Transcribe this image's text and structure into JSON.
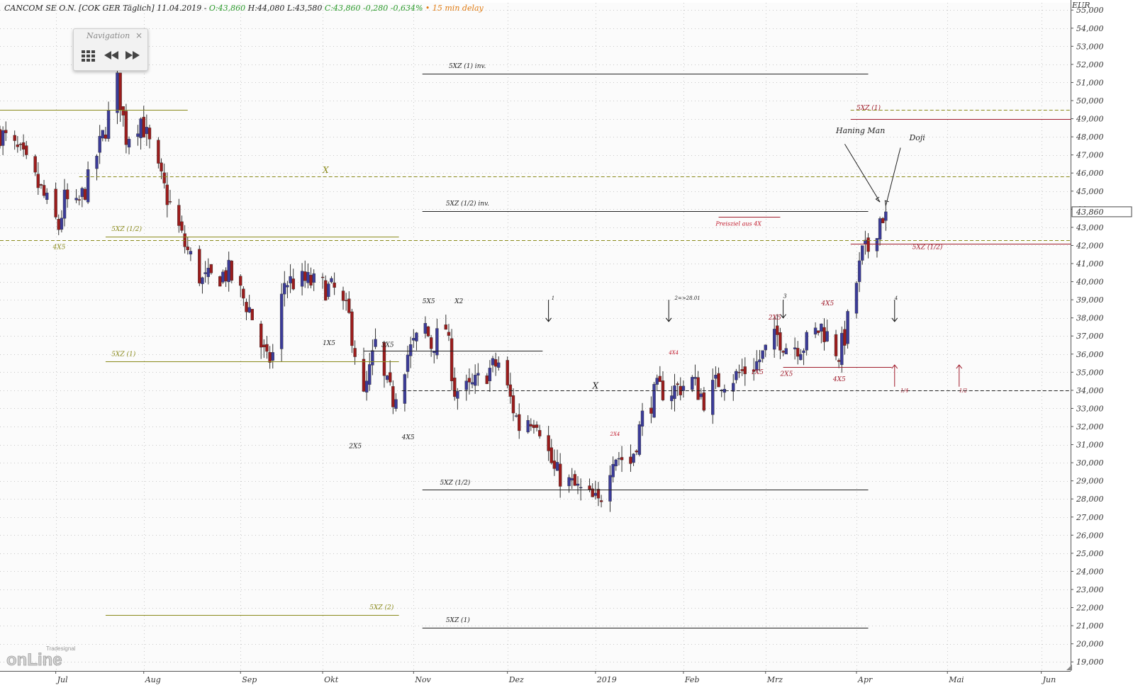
{
  "header": {
    "symbol": "CANCOM SE O.N. [COK GER Täglich] 11.04.2019 -",
    "open": "O:43,860",
    "high": "H:44,080",
    "low": "L:43,580",
    "close": "C:43,860 -0,280 -0,634%",
    "delay": "• 15 min delay"
  },
  "navigation": {
    "title": "Navigation",
    "close": "×"
  },
  "logo": {
    "brand": "Tradesignal",
    "text": "onLine"
  },
  "colors": {
    "up": "#3b3b98",
    "down": "#9b1c1c",
    "olive": "#8a8a1a",
    "crimson": "#a01b2b",
    "text": "#333333",
    "price_box": "#444444"
  },
  "chart_data": {
    "type": "candlestick",
    "currency": "EUR",
    "ylim": [
      18.5,
      55.4
    ],
    "y_ticks": [
      "19,000",
      "20,000",
      "21,000",
      "22,000",
      "23,000",
      "24,000",
      "25,000",
      "26,000",
      "27,000",
      "28,000",
      "29,000",
      "30,000",
      "31,000",
      "32,000",
      "33,000",
      "34,000",
      "35,000",
      "36,000",
      "37,000",
      "38,000",
      "39,000",
      "40,000",
      "41,000",
      "42,000",
      "43,000",
      "44,000",
      "45,000",
      "46,000",
      "47,000",
      "48,000",
      "49,000",
      "50,000",
      "51,000",
      "52,000",
      "53,000",
      "54,000",
      "55,000"
    ],
    "x_labels": [
      {
        "label": "Jul",
        "date": "2018-07-02"
      },
      {
        "label": "Aug",
        "date": "2018-08-01"
      },
      {
        "label": "Sep",
        "date": "2018-09-03"
      },
      {
        "label": "Okt",
        "date": "2018-10-01"
      },
      {
        "label": "Nov",
        "date": "2018-11-01"
      },
      {
        "label": "Dez",
        "date": "2018-12-03"
      },
      {
        "label": "2019",
        "date": "2019-01-02"
      },
      {
        "label": "Feb",
        "date": "2019-02-01"
      },
      {
        "label": "Mrz",
        "date": "2019-03-01"
      },
      {
        "label": "Apr",
        "date": "2019-04-01"
      },
      {
        "label": "Mai",
        "date": "2019-05-02"
      },
      {
        "label": "Jun",
        "date": "2019-06-03"
      }
    ],
    "x_start": "2018-06-13",
    "x_end": "2019-06-13",
    "last_price": "43,860",
    "anchors": [
      [
        "2018-06-13",
        48.2
      ],
      [
        "2018-06-20",
        47.0
      ],
      [
        "2018-06-27",
        45.0
      ],
      [
        "2018-07-03",
        43.0
      ],
      [
        "2018-07-05",
        44.5
      ],
      [
        "2018-07-09",
        44.0
      ],
      [
        "2018-07-13",
        45.5
      ],
      [
        "2018-07-19",
        48.5
      ],
      [
        "2018-07-23",
        51.0
      ],
      [
        "2018-07-26",
        48.0
      ],
      [
        "2018-07-31",
        49.0
      ],
      [
        "2018-08-06",
        46.0
      ],
      [
        "2018-08-15",
        42.0
      ],
      [
        "2018-08-21",
        40.0
      ],
      [
        "2018-08-30",
        40.5
      ],
      [
        "2018-09-06",
        38.5
      ],
      [
        "2018-09-12",
        35.5
      ],
      [
        "2018-09-14",
        36.0
      ],
      [
        "2018-09-18",
        40.0
      ],
      [
        "2018-09-26",
        40.0
      ],
      [
        "2018-10-05",
        39.5
      ],
      [
        "2018-10-10",
        38.0
      ],
      [
        "2018-10-15",
        33.5
      ],
      [
        "2018-10-19",
        36.5
      ],
      [
        "2018-10-22",
        34.5
      ],
      [
        "2018-10-25",
        33.5
      ],
      [
        "2018-10-30",
        36.0
      ],
      [
        "2018-11-05",
        37.5
      ],
      [
        "2018-11-07",
        36.5
      ],
      [
        "2018-11-12",
        37.5
      ],
      [
        "2018-11-15",
        34.0
      ],
      [
        "2018-11-20",
        34.0
      ],
      [
        "2018-11-26",
        35.0
      ],
      [
        "2018-11-30",
        35.5
      ],
      [
        "2018-12-07",
        32.0
      ],
      [
        "2018-12-10",
        32.5
      ],
      [
        "2018-12-13",
        32.5
      ],
      [
        "2018-12-19",
        29.5
      ],
      [
        "2018-12-27",
        28.5
      ],
      [
        "2019-01-03",
        27.7
      ],
      [
        "2019-01-08",
        30.5
      ],
      [
        "2019-01-14",
        30.0
      ],
      [
        "2019-01-18",
        32.5
      ],
      [
        "2019-01-23",
        34.0
      ],
      [
        "2019-01-28",
        34.0
      ],
      [
        "2019-02-04",
        34.5
      ],
      [
        "2019-02-08",
        33.5
      ],
      [
        "2019-02-13",
        34.5
      ],
      [
        "2019-02-19",
        34.8
      ],
      [
        "2019-02-26",
        35.5
      ],
      [
        "2019-03-05",
        37.0
      ],
      [
        "2019-03-08",
        36.5
      ],
      [
        "2019-03-14",
        36.5
      ],
      [
        "2019-03-20",
        37.5
      ],
      [
        "2019-03-26",
        36.0
      ],
      [
        "2019-03-28",
        37.0
      ],
      [
        "2019-04-01",
        40.0
      ],
      [
        "2019-04-03",
        41.5
      ],
      [
        "2019-04-05",
        41.8
      ],
      [
        "2019-04-09",
        43.5
      ],
      [
        "2019-04-11",
        43.86
      ]
    ],
    "levels": [
      {
        "y": 49.5,
        "x0": "2018-06-13",
        "x1": "2018-08-16",
        "style": "solid",
        "color": "#8a8a1a"
      },
      {
        "y": 45.8,
        "x0": "2018-07-10",
        "x1": "2019-06-13",
        "style": "dashed",
        "color": "#8a8a1a"
      },
      {
        "y": 42.3,
        "x0": "2018-06-13",
        "x1": "2019-06-13",
        "style": "dashed",
        "color": "#8a8a1a"
      },
      {
        "y": 42.5,
        "x0": "2018-07-19",
        "x1": "2018-10-27",
        "style": "solid",
        "color": "#8a8a1a"
      },
      {
        "y": 35.6,
        "x0": "2018-07-19",
        "x1": "2018-10-27",
        "style": "solid",
        "color": "#8a8a1a"
      },
      {
        "y": 21.6,
        "x0": "2018-07-19",
        "x1": "2018-10-27",
        "style": "solid",
        "color": "#8a8a1a"
      },
      {
        "y": 51.5,
        "x0": "2018-11-04",
        "x1": "2019-04-05",
        "style": "solid",
        "color": "#222222"
      },
      {
        "y": 43.9,
        "x0": "2018-11-04",
        "x1": "2019-04-05",
        "style": "solid",
        "color": "#222222"
      },
      {
        "y": 28.5,
        "x0": "2018-11-04",
        "x1": "2019-04-05",
        "style": "solid",
        "color": "#222222"
      },
      {
        "y": 20.9,
        "x0": "2018-11-04",
        "x1": "2019-04-05",
        "style": "solid",
        "color": "#222222"
      },
      {
        "y": 36.2,
        "x0": "2018-10-15",
        "x1": "2018-12-15",
        "style": "solid",
        "color": "#222222"
      },
      {
        "y": 34.0,
        "x0": "2018-10-28",
        "x1": "2019-06-13",
        "style": "dashed",
        "color": "#222222"
      },
      {
        "y": 49.5,
        "x0": "2019-03-30",
        "x1": "2019-06-13",
        "style": "dashed",
        "color": "#8a8a1a"
      },
      {
        "y": 49.0,
        "x0": "2019-03-30",
        "x1": "2019-06-13",
        "style": "solid",
        "color": "#a01b2b"
      },
      {
        "y": 42.1,
        "x0": "2019-03-30",
        "x1": "2019-06-13",
        "style": "solid",
        "color": "#a01b2b"
      },
      {
        "y": 35.3,
        "x0": "2019-03-07",
        "x1": "2019-04-13",
        "style": "solid",
        "color": "#a01b2b"
      },
      {
        "y": 43.6,
        "x0": "2019-02-13",
        "x1": "2019-03-06",
        "style": "solid",
        "color": "#a01b2b"
      }
    ],
    "annotations": [
      {
        "text": "5XZ (1) inv.",
        "date": "2018-11-13",
        "y": 51.8,
        "color": "#222222",
        "size": 9
      },
      {
        "text": "5XZ (1/2) inv.",
        "date": "2018-11-12",
        "y": 44.2,
        "color": "#222222",
        "size": 9
      },
      {
        "text": "5XZ (1/2)",
        "date": "2018-11-10",
        "y": 28.8,
        "color": "#222222",
        "size": 9
      },
      {
        "text": "5XZ (1)",
        "date": "2018-11-12",
        "y": 21.2,
        "color": "#222222",
        "size": 9
      },
      {
        "text": "5XZ (1/2)",
        "date": "2018-07-21",
        "y": 42.8,
        "color": "#8a8a1a",
        "size": 9
      },
      {
        "text": "5XZ (1)",
        "date": "2018-07-21",
        "y": 35.9,
        "color": "#8a8a1a",
        "size": 9
      },
      {
        "text": "5XZ (2)",
        "date": "2018-10-17",
        "y": 21.9,
        "color": "#8a8a1a",
        "size": 9
      },
      {
        "text": "X",
        "date": "2018-10-01",
        "y": 46.0,
        "color": "#8a8a1a",
        "size": 12
      },
      {
        "text": "4X5",
        "date": "2018-07-01",
        "y": 41.8,
        "color": "#8a8a1a",
        "size": 9
      },
      {
        "text": "5XZ (1)",
        "date": "2019-04-01",
        "y": 49.5,
        "color": "#a01b2b",
        "size": 9
      },
      {
        "text": "5XZ (1/2)",
        "date": "2019-04-20",
        "y": 41.8,
        "color": "#a01b2b",
        "size": 9
      },
      {
        "text": "Preisziel aus 4X",
        "date": "2019-02-12",
        "y": 43.1,
        "color": "#c0182a",
        "size": 8
      },
      {
        "text": "Haning Man",
        "date": "2019-03-25",
        "y": 48.2,
        "color": "#222222",
        "size": 11
      },
      {
        "text": "Doji",
        "date": "2019-04-19",
        "y": 47.8,
        "color": "#222222",
        "size": 11
      },
      {
        "text": "X",
        "date": "2019-01-01",
        "y": 34.1,
        "color": "#222222",
        "size": 12
      },
      {
        "text": "5X5",
        "date": "2018-11-04",
        "y": 38.8,
        "color": "#222222",
        "size": 9
      },
      {
        "text": "X2",
        "date": "2018-11-15",
        "y": 38.8,
        "color": "#222222",
        "size": 9
      },
      {
        "text": "1X5",
        "date": "2018-10-01",
        "y": 36.5,
        "color": "#222222",
        "size": 9
      },
      {
        "text": "3X5",
        "date": "2018-10-21",
        "y": 36.4,
        "color": "#222222",
        "size": 9
      },
      {
        "text": "2X5",
        "date": "2018-10-10",
        "y": 30.8,
        "color": "#222222",
        "size": 9
      },
      {
        "text": "4X5",
        "date": "2018-10-28",
        "y": 31.3,
        "color": "#222222",
        "size": 9
      },
      {
        "text": "1",
        "date": "2018-12-18",
        "y": 39.0,
        "color": "#222222",
        "size": 7
      },
      {
        "text": "2=>28.01",
        "date": "2019-01-29",
        "y": 39.0,
        "color": "#222222",
        "size": 7
      },
      {
        "text": "3",
        "date": "2019-03-07",
        "y": 39.1,
        "color": "#222222",
        "size": 8
      },
      {
        "text": "4",
        "date": "2019-04-14",
        "y": 39.0,
        "color": "#222222",
        "size": 7
      },
      {
        "text": "4X5",
        "date": "2019-03-20",
        "y": 38.7,
        "color": "#a01b2b",
        "size": 9
      },
      {
        "text": "2X5",
        "date": "2019-03-02",
        "y": 37.9,
        "color": "#a01b2b",
        "size": 9
      },
      {
        "text": "1X5",
        "date": "2019-02-24",
        "y": 34.9,
        "color": "#a01b2b",
        "size": 9
      },
      {
        "text": "2X5",
        "date": "2019-03-06",
        "y": 34.8,
        "color": "#a01b2b",
        "size": 9
      },
      {
        "text": "4X5",
        "date": "2019-03-24",
        "y": 34.5,
        "color": "#a01b2b",
        "size": 9
      },
      {
        "text": "4X4",
        "date": "2019-01-27",
        "y": 36.0,
        "color": "#c0182a",
        "size": 7
      },
      {
        "text": "2X4",
        "date": "2019-01-07",
        "y": 31.5,
        "color": "#c0182a",
        "size": 7
      },
      {
        "text": "1/4",
        "date": "2019-04-16",
        "y": 33.9,
        "color": "#a01b2b",
        "size": 7
      },
      {
        "text": "1/2",
        "date": "2019-05-06",
        "y": 33.9,
        "color": "#a01b2b",
        "size": 7
      }
    ],
    "arrows": [
      {
        "date": "2018-12-17",
        "from": 39.0,
        "to": 37.8,
        "color": "#111111"
      },
      {
        "date": "2019-01-27",
        "from": 39.0,
        "to": 37.8,
        "color": "#111111"
      },
      {
        "date": "2019-03-07",
        "from": 39.0,
        "to": 38.0,
        "color": "#111111"
      },
      {
        "date": "2019-04-14",
        "from": 39.0,
        "to": 37.8,
        "color": "#111111"
      },
      {
        "date": "2019-04-14",
        "from": 34.2,
        "to": 35.4,
        "color": "#a01b2b"
      },
      {
        "date": "2019-05-06",
        "from": 34.2,
        "to": 35.4,
        "color": "#a01b2b"
      }
    ],
    "pointer_lines": [
      {
        "x0": "2019-03-28",
        "y0": 47.6,
        "x1": "2019-04-09",
        "y1": 44.4
      },
      {
        "x0": "2019-04-16",
        "y0": 47.4,
        "x1": "2019-04-11",
        "y1": 44.2
      }
    ]
  }
}
